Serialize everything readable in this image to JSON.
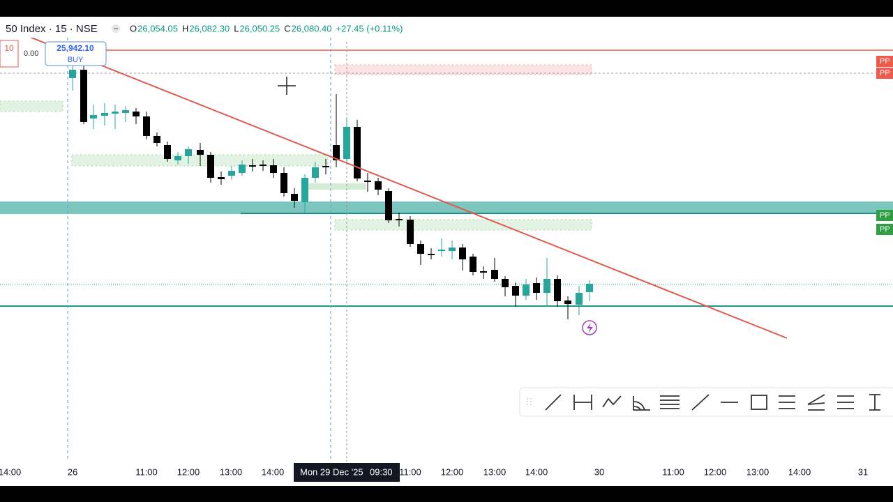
{
  "header": {
    "symbol": "50 Index · 15 · NSE",
    "ohlc": [
      {
        "label": "O",
        "value": "26,054.05"
      },
      {
        "label": "H",
        "value": "26,082.30"
      },
      {
        "label": "L",
        "value": "26,050.25"
      },
      {
        "label": "C",
        "value": "26,080.40"
      }
    ],
    "change": "+27.45 (+0.11%)"
  },
  "order": {
    "price": "25,942.10",
    "side": "BUY",
    "left_tag": "10",
    "left_value": "0.00"
  },
  "right_labels": [
    "PP",
    "PP",
    "PP",
    "PP"
  ],
  "time_axis": {
    "labels": [
      "14:00",
      "26",
      "11:00",
      "12:00",
      "13:00",
      "14:00",
      "11:00",
      "12:00",
      "13:00",
      "14:00",
      "30",
      "11:00",
      "12:00",
      "13:00",
      "14:00",
      "31"
    ],
    "cursor": {
      "date": "Mon 29 Dec '25",
      "time": "09:30"
    }
  }
}
